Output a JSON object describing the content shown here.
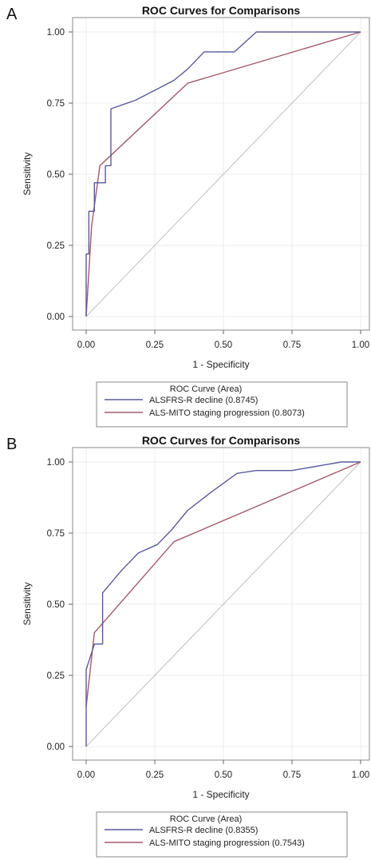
{
  "chart_data": [
    {
      "panel_label": "A",
      "type": "line",
      "title": "ROC Curves for Comparisons",
      "xlabel": "1 - Specificity",
      "ylabel": "Sensitivity",
      "xlim": [
        0,
        1
      ],
      "ylim": [
        0,
        1
      ],
      "x_ticks": [
        "0.00",
        "0.25",
        "0.50",
        "0.75",
        "1.00"
      ],
      "y_ticks": [
        "0.00",
        "0.25",
        "0.50",
        "0.75",
        "1.00"
      ],
      "grid": true,
      "legend_title": "ROC Curve (Area)",
      "legend_position": "bottom",
      "series": [
        {
          "name": "ALSFRS-R decline",
          "area": "(0.8745)",
          "color": "#5a5a9a",
          "x": [
            0.0,
            0.0,
            0.01,
            0.01,
            0.03,
            0.03,
            0.05,
            0.05,
            0.07,
            0.07,
            0.09,
            0.09,
            0.18,
            0.26,
            0.32,
            0.37,
            0.43,
            0.54,
            0.62,
            1.0
          ],
          "y": [
            0.0,
            0.22,
            0.22,
            0.37,
            0.37,
            0.47,
            0.47,
            0.47,
            0.47,
            0.53,
            0.53,
            0.73,
            0.76,
            0.8,
            0.83,
            0.87,
            0.93,
            0.93,
            1.0,
            1.0
          ]
        },
        {
          "name": "ALS-MITO staging progression",
          "area": "(0.8073)",
          "color": "#a05a6a",
          "x": [
            0.0,
            0.02,
            0.05,
            0.37,
            1.0
          ],
          "y": [
            0.0,
            0.32,
            0.53,
            0.82,
            1.0
          ]
        },
        {
          "name": "",
          "color": "#bfbfbf",
          "x": [
            0,
            1
          ],
          "y": [
            0,
            1
          ]
        }
      ]
    },
    {
      "panel_label": "B",
      "type": "line",
      "title": "ROC Curves for Comparisons",
      "xlabel": "1 - Specificity",
      "ylabel": "Sensitivity",
      "xlim": [
        0,
        1
      ],
      "ylim": [
        0,
        1
      ],
      "x_ticks": [
        "0.00",
        "0.25",
        "0.50",
        "0.75",
        "1.00"
      ],
      "y_ticks": [
        "0.00",
        "0.25",
        "0.50",
        "0.75",
        "1.00"
      ],
      "grid": true,
      "legend_title": "ROC Curve (Area)",
      "legend_position": "bottom",
      "series": [
        {
          "name": "ALSFRS-R decline",
          "area": "(0.8355)",
          "color": "#5a5a9a",
          "x": [
            0.0,
            0.0,
            0.03,
            0.03,
            0.06,
            0.06,
            0.13,
            0.19,
            0.26,
            0.31,
            0.37,
            0.45,
            0.55,
            0.62,
            0.75,
            0.87,
            0.93,
            1.0
          ],
          "y": [
            0.0,
            0.27,
            0.36,
            0.36,
            0.36,
            0.54,
            0.62,
            0.68,
            0.71,
            0.76,
            0.83,
            0.89,
            0.96,
            0.97,
            0.97,
            0.99,
            1.0,
            1.0
          ]
        },
        {
          "name": "ALS-MITO staging progression",
          "area": "(0.7543)",
          "color": "#a05a6a",
          "x": [
            0.0,
            0.03,
            0.32,
            1.0
          ],
          "y": [
            0.14,
            0.4,
            0.72,
            1.0
          ]
        },
        {
          "name": "",
          "color": "#bfbfbf",
          "x": [
            0,
            1
          ],
          "y": [
            0,
            1
          ]
        }
      ]
    }
  ]
}
